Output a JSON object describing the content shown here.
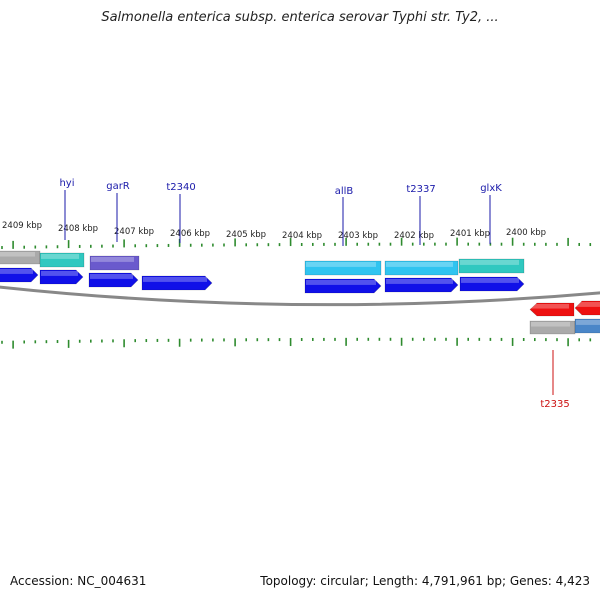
{
  "title": "Salmonella enterica subsp. enterica serovar Typhi str. Ty2, ...",
  "footer": {
    "accession_label": "Accession:",
    "accession": "NC_004631",
    "topology_label": "Topology:",
    "topology": "circular",
    "length_label": "Length:",
    "length": "4,791,961 bp",
    "genes_label": "Genes:",
    "genes": "4,423"
  },
  "colors": {
    "backbone": "#888888",
    "tick": "#2e8b2e",
    "gene_blue": "#1010e8",
    "gene_cyan": "#30c4f0",
    "gene_teal": "#30c8c0",
    "gene_purple": "#6a5acd",
    "gene_grey": "#aaaaaa",
    "gene_red": "#ee1111",
    "gene_steel": "#4a86c8",
    "label_blue": "#1a1aaa",
    "label_red": "#cc1111"
  },
  "axis": {
    "unit": "kbp",
    "scale_labels": [
      "2409 kbp",
      "2408 kbp",
      "2407 kbp",
      "2406 kbp",
      "2405 kbp",
      "2404 kbp",
      "2403 kbp",
      "2402 kbp",
      "2401 kbp",
      "2400 kbp"
    ]
  },
  "gene_labels": [
    {
      "name": "hyi",
      "color": "label_blue"
    },
    {
      "name": "garR",
      "color": "label_blue"
    },
    {
      "name": "t2340",
      "color": "label_blue"
    },
    {
      "name": "allB",
      "color": "label_blue"
    },
    {
      "name": "t2337",
      "color": "label_blue"
    },
    {
      "name": "glxK",
      "color": "label_blue"
    },
    {
      "name": "t2335",
      "color": "label_red"
    }
  ]
}
